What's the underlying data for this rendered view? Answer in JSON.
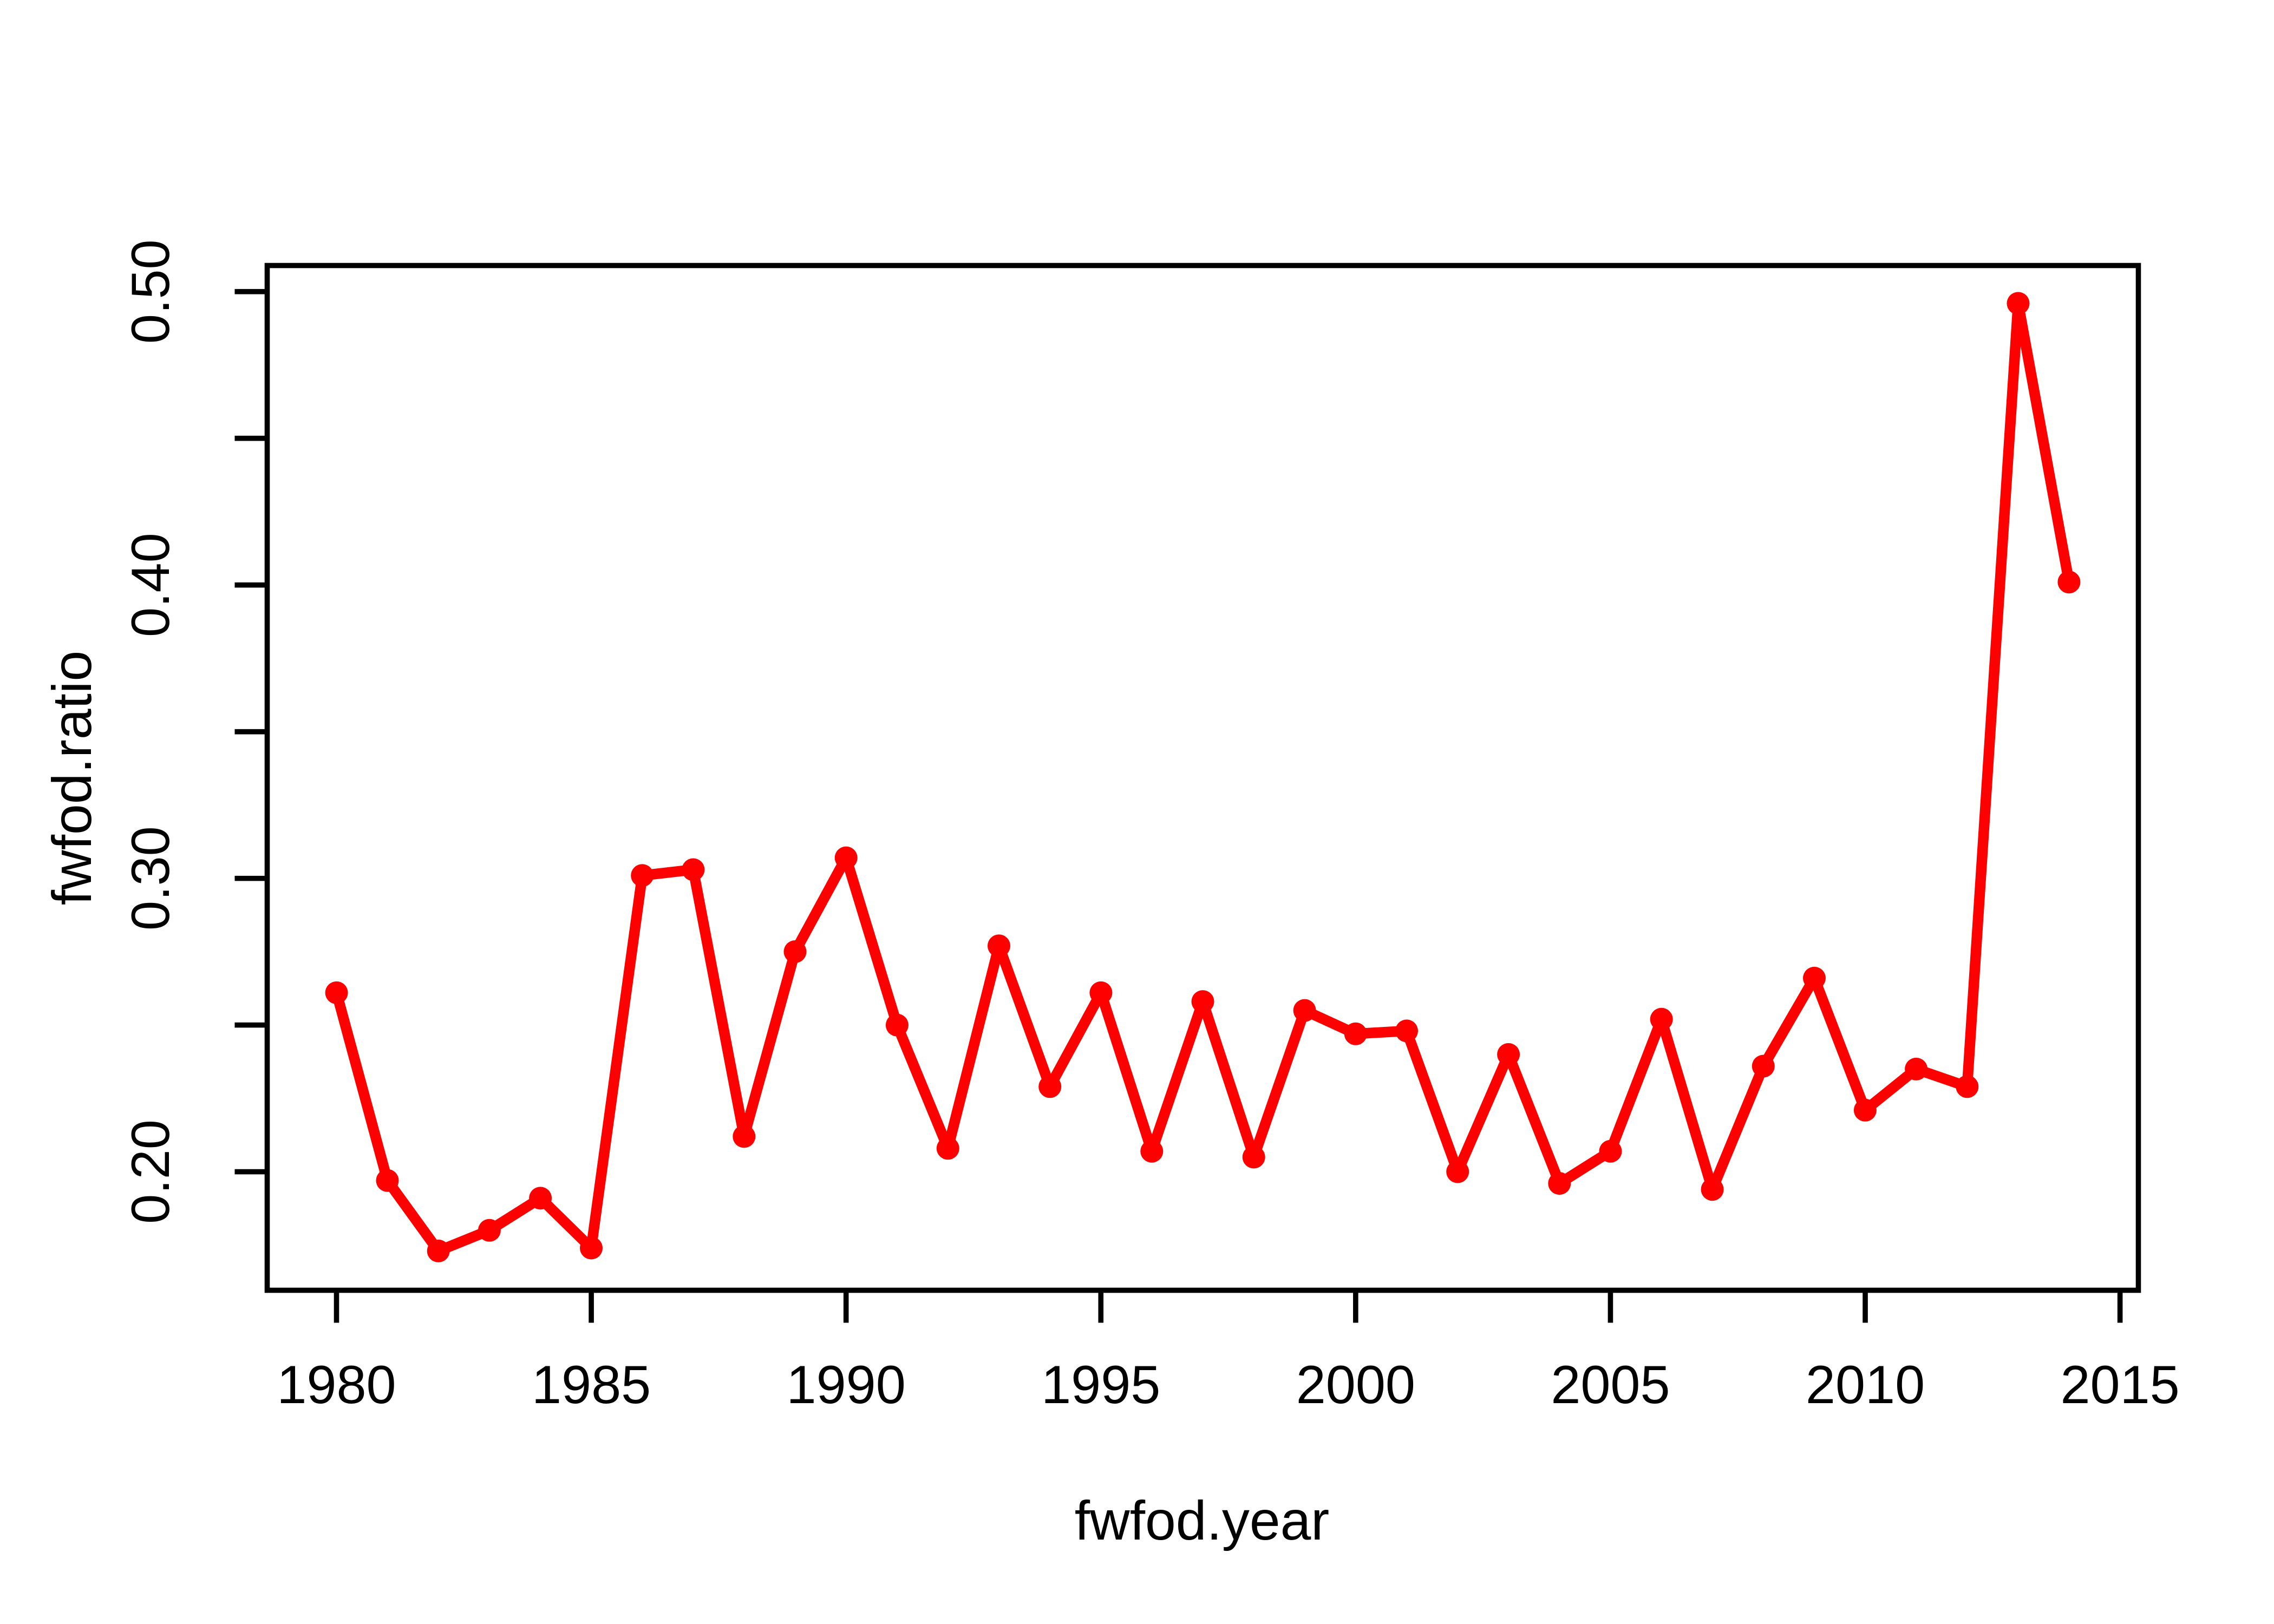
{
  "chart_data": {
    "type": "line",
    "title": "",
    "xlabel": "fwfod.year",
    "ylabel": "fwfod.ratio",
    "legend": "none",
    "grid": false,
    "background_color": "#FFFFFF",
    "axis_color": "#000000",
    "series": [
      {
        "name": "fwfod.ratio",
        "color": "#FF0000",
        "marker": "filled-circle",
        "x": [
          1980,
          1981,
          1982,
          1983,
          1984,
          1985,
          1986,
          1987,
          1988,
          1989,
          1990,
          1991,
          1992,
          1993,
          1994,
          1995,
          1996,
          1997,
          1998,
          1999,
          2000,
          2001,
          2002,
          2003,
          2004,
          2005,
          2006,
          2007,
          2008,
          2009,
          2010,
          2011,
          2012,
          2013,
          2014
        ],
        "values": [
          0.261,
          0.197,
          0.173,
          0.18,
          0.191,
          0.174,
          0.301,
          0.303,
          0.212,
          0.275,
          0.307,
          0.25,
          0.208,
          0.277,
          0.229,
          0.261,
          0.207,
          0.258,
          0.205,
          0.255,
          0.247,
          0.248,
          0.2,
          0.24,
          0.196,
          0.207,
          0.252,
          0.194,
          0.236,
          0.266,
          0.221,
          0.235,
          0.229,
          0.496,
          0.401
        ]
      }
    ],
    "xlim": [
      1978.64,
      2015.36
    ],
    "ylim": [
      0.1596,
      0.5089
    ],
    "x_ticks": [
      1980,
      1985,
      1990,
      1995,
      2000,
      2005,
      2010,
      2015
    ],
    "x_tick_labels": [
      "1980",
      "1985",
      "1990",
      "1995",
      "2000",
      "2005",
      "2010",
      "2015"
    ],
    "y_major_ticks": [
      0.2,
      0.3,
      0.4,
      0.5
    ],
    "y_major_tick_labels": [
      "0.20",
      "0.30",
      "0.40",
      "0.50"
    ],
    "y_minor_ticks": [
      0.25,
      0.35,
      0.45
    ]
  }
}
